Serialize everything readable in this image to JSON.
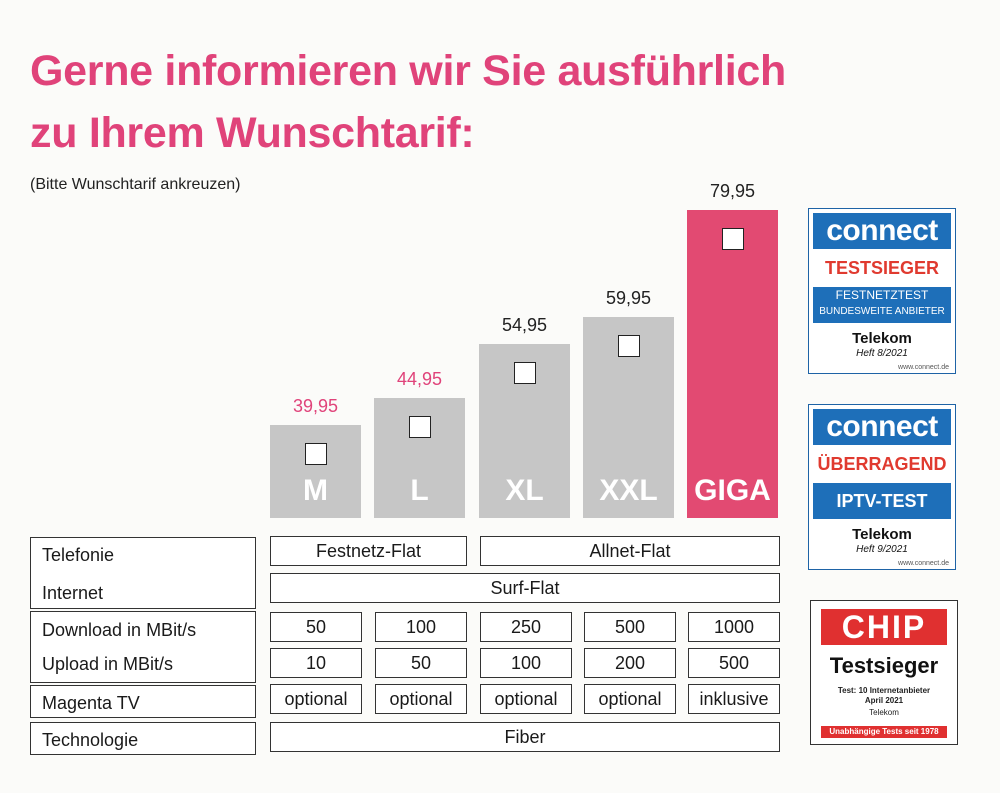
{
  "headline": {
    "line1": "Gerne informieren wir Sie ausführlich",
    "line2": "zu Ihrem Wunschtarif:",
    "subtitle": "(Bitte Wunschtarif ankreuzen)"
  },
  "chart_data": {
    "type": "bar",
    "categories": [
      "M",
      "L",
      "XL",
      "XXL",
      "GIGA"
    ],
    "values": [
      39.95,
      44.95,
      54.95,
      59.95,
      79.95
    ],
    "value_labels": [
      "39,95",
      "44,95",
      "54,95",
      "59,95",
      "79,95"
    ],
    "title": "",
    "xlabel": "",
    "ylabel": ""
  },
  "colors": {
    "accent": "#e0437a",
    "bar": "#c6c6c6",
    "highlight_bar": "#e24a72",
    "connect_blue": "#1e6fb9",
    "chip_red": "#e03030"
  },
  "table": {
    "labels": {
      "telefonie": "Telefonie",
      "internet": "Internet",
      "download": "Download in MBit/s",
      "upload": "Upload in MBit/s",
      "tv": "Magenta TV",
      "tech": "Technologie"
    },
    "telefonie": {
      "ml": "Festnetz-Flat",
      "xl_giga": "Allnet-Flat"
    },
    "internet": "Surf-Flat",
    "download": [
      "50",
      "100",
      "250",
      "500",
      "1000"
    ],
    "upload": [
      "10",
      "50",
      "100",
      "200",
      "500"
    ],
    "tv": [
      "optional",
      "optional",
      "optional",
      "optional",
      "inklusive"
    ],
    "tech": "Fiber"
  },
  "badges": {
    "connect1": {
      "logo": "connect",
      "award": "TESTSIEGER",
      "line1": "FESTNETZTEST",
      "line2": "BUNDESWEITE ANBIETER",
      "brand": "Telekom",
      "issue": "Heft 8/2021",
      "url": "www.connect.de"
    },
    "connect2": {
      "logo": "connect",
      "award": "ÜBERRAGEND",
      "line1": "IPTV-TEST",
      "brand": "Telekom",
      "issue": "Heft 9/2021",
      "url": "www.connect.de"
    },
    "chip": {
      "logo": "CHIP",
      "title": "Testsieger",
      "line1": "Test: 10 Internetanbieter",
      "line2": "April 2021",
      "brand": "Telekom",
      "footer": "Unabhängige Tests seit 1978"
    }
  }
}
